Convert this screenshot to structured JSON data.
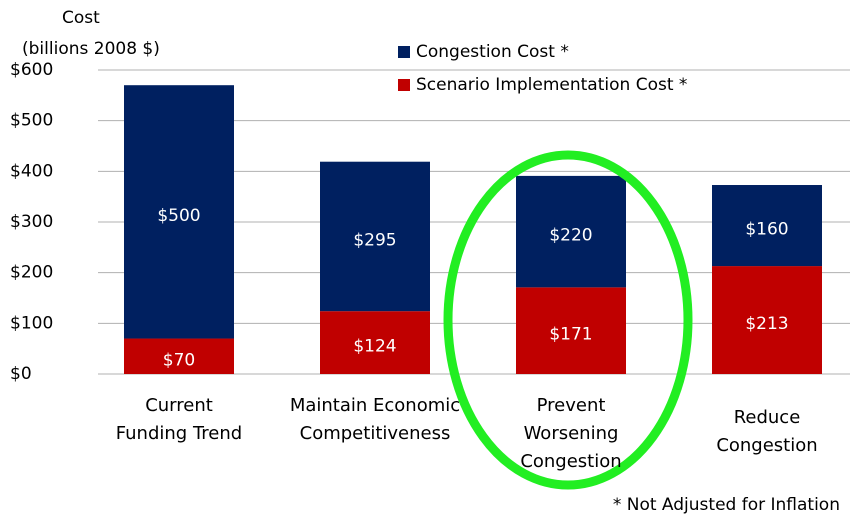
{
  "chart_data": {
    "type": "stacked-bar",
    "ylabel": [
      "Cost",
      "(billions 2008 $)"
    ],
    "categories": [
      "Current Funding Trend",
      "Maintain Economic Competitiveness",
      "Prevent Worsening Congestion",
      "Reduce Congestion"
    ],
    "series": [
      {
        "name": "Congestion Cost *",
        "color": "#002060",
        "values": [
          500,
          295,
          220,
          160
        ],
        "value_labels": [
          "$500",
          "$295",
          "$220",
          "$160"
        ]
      },
      {
        "name": "Scenario Implementation Cost *",
        "color": "#c00000",
        "values": [
          70,
          124,
          171,
          213
        ],
        "value_labels": [
          "$70",
          "$124",
          "$171",
          "$213"
        ]
      }
    ],
    "ylim": [
      0,
      600
    ],
    "yticks": [
      {
        "value": 0,
        "label": "$0"
      },
      {
        "value": 100,
        "label": "$100"
      },
      {
        "value": 200,
        "label": "$200"
      },
      {
        "value": 300,
        "label": "$300"
      },
      {
        "value": 400,
        "label": "$400"
      },
      {
        "value": 500,
        "label": "$500"
      },
      {
        "value": 600,
        "label": "$600"
      }
    ],
    "grid": true,
    "note": "* Not Adjusted for Inflation"
  }
}
